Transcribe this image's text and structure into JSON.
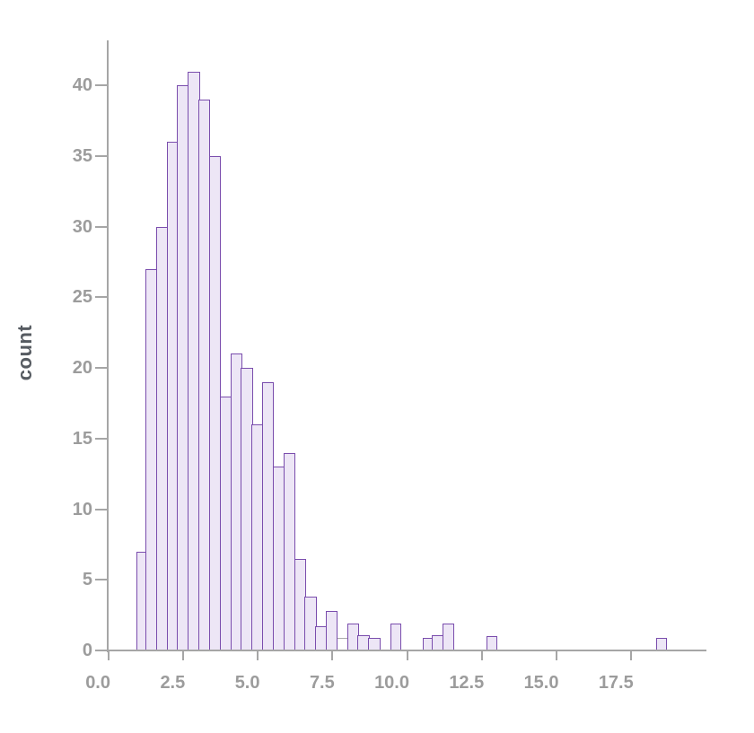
{
  "figure": {
    "background": "#ffffff"
  },
  "chart_data": {
    "type": "bar",
    "subtype": "histogram",
    "title": "",
    "xlabel": "",
    "ylabel": "count",
    "grid": false,
    "legend": "none",
    "xlim": [
      0,
      20
    ],
    "ylim": [
      0,
      43.2
    ],
    "x_tick_values": [
      0,
      2.5,
      5,
      7.5,
      10,
      12.5,
      15,
      17.5
    ],
    "x_tick_labels": [
      "0.0",
      "2.5",
      "5.0",
      "7.5",
      "10.0",
      "12.5",
      "15.0",
      "17.5"
    ],
    "y_tick_values": [
      0,
      5,
      10,
      15,
      20,
      25,
      30,
      35,
      40
    ],
    "y_tick_labels": [
      "0",
      "5",
      "10",
      "15",
      "20",
      "25",
      "30",
      "35",
      "40"
    ],
    "bins": {
      "start": 0.92,
      "width": 0.3551,
      "count": 50
    },
    "counts": [
      7,
      27,
      30,
      36,
      40,
      41,
      39,
      35,
      18,
      21,
      20,
      16,
      19,
      13,
      14,
      6.5,
      3.8,
      1.7,
      2.8,
      0.9,
      1.9,
      1.1,
      0.9,
      0,
      1.9,
      0,
      0,
      0.9,
      1.1,
      1.9,
      0,
      0,
      0,
      1,
      0,
      0,
      0,
      0,
      0,
      0,
      0,
      0,
      0,
      0,
      0,
      0,
      0,
      0,
      0,
      0.9
    ],
    "outlier_bin": {
      "index": 19,
      "note": "bar drawn with white fill and gray edge"
    },
    "colors": {
      "bar_fill": "#ede6f6",
      "bar_edge": "#7a4dad",
      "bar_edge_overlap": "#6b3f9e",
      "outlier_bar_fill": "#ffffff",
      "outlier_bar_edge": "#aaaaaa",
      "axis": "#a6a6a6",
      "tick_label": "#9c9c9c",
      "axis_label": "#565b61"
    }
  }
}
